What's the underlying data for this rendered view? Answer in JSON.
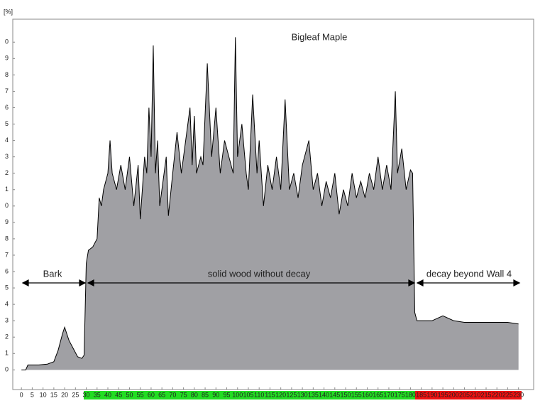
{
  "chart_data": {
    "type": "area",
    "title": "Bigleaf Maple",
    "y_label": "[%]",
    "color": "#a0a0a4",
    "annotations": [
      "Bark",
      "solid wood without decay",
      "decay beyond Wall 4"
    ],
    "x": [
      0,
      2,
      3,
      5,
      8,
      12,
      15,
      17,
      19,
      20,
      21,
      22,
      24,
      26,
      28,
      29,
      30,
      31,
      33,
      35,
      36,
      37,
      38,
      40,
      41,
      42,
      44,
      46,
      48,
      50,
      52,
      54,
      55,
      57,
      58,
      59,
      60,
      61,
      62,
      63,
      64,
      65,
      67,
      68,
      70,
      72,
      74,
      76,
      78,
      79,
      80,
      81,
      83,
      84,
      86,
      88,
      90,
      92,
      94,
      96,
      98,
      99,
      100,
      102,
      104,
      105,
      107,
      109,
      110,
      112,
      114,
      116,
      118,
      120,
      122,
      124,
      126,
      128,
      130,
      133,
      135,
      137,
      139,
      141,
      143,
      145,
      147,
      149,
      151,
      153,
      155,
      157,
      159,
      161,
      163,
      165,
      167,
      169,
      171,
      173,
      174,
      176,
      178,
      180,
      181,
      182,
      183,
      185,
      190,
      195,
      200,
      205,
      215,
      225,
      230
    ],
    "values": [
      0,
      0,
      0.3,
      0.3,
      0.3,
      0.35,
      0.5,
      1.2,
      2.2,
      2.6,
      2.2,
      1.8,
      1.3,
      0.8,
      0.7,
      0.9,
      6.5,
      7.3,
      7.5,
      8,
      10.5,
      10,
      11,
      12,
      14,
      12,
      11,
      12.5,
      11,
      13,
      10,
      12.5,
      9.2,
      13,
      12,
      16,
      13,
      19.8,
      12,
      14,
      10,
      11,
      13,
      9.4,
      12,
      14.5,
      12,
      14,
      16,
      12.5,
      15.5,
      12,
      13,
      12.5,
      18.7,
      13,
      16,
      12,
      14,
      13,
      12,
      20.3,
      13,
      15,
      12,
      11,
      16.8,
      12,
      14,
      10,
      12.5,
      11,
      13,
      11,
      16.5,
      11,
      12,
      10.5,
      12.5,
      14,
      11,
      12,
      10,
      11.5,
      10.5,
      12,
      9.5,
      11,
      10,
      12,
      10.5,
      11.5,
      10.5,
      12,
      11,
      13,
      11,
      12.5,
      11,
      17,
      12,
      13.5,
      11,
      12.2,
      12,
      3.5,
      3,
      3,
      3,
      3.3,
      3,
      2.9,
      2.9,
      2.9,
      2.8
    ],
    "xlim": [
      -4,
      237
    ],
    "ylim": [
      -1.2,
      21.4
    ],
    "xticks": [
      0,
      5,
      10,
      15,
      20,
      25,
      30,
      35,
      40,
      45,
      50,
      55,
      60,
      65,
      70,
      75,
      80,
      85,
      90,
      95,
      100,
      105,
      110,
      115,
      120,
      125,
      130,
      135,
      140,
      145,
      150,
      155,
      160,
      165,
      170,
      175,
      180,
      185,
      190,
      195,
      200,
      205,
      210,
      215,
      220,
      225,
      230
    ],
    "yticks": [
      0,
      1,
      2,
      3,
      4,
      5,
      6,
      7,
      8,
      9,
      {
        "value": 10,
        "label": "0"
      },
      {
        "value": 11,
        "label": "1"
      },
      {
        "value": 12,
        "label": "2"
      },
      {
        "value": 13,
        "label": "3"
      },
      {
        "value": 14,
        "label": "4"
      },
      {
        "value": 15,
        "label": "5"
      },
      {
        "value": 16,
        "label": "6"
      },
      {
        "value": 17,
        "label": "7"
      },
      {
        "value": 18,
        "label": "8"
      },
      {
        "value": 19,
        "label": "9"
      },
      {
        "value": 20,
        "label": "0"
      }
    ]
  }
}
